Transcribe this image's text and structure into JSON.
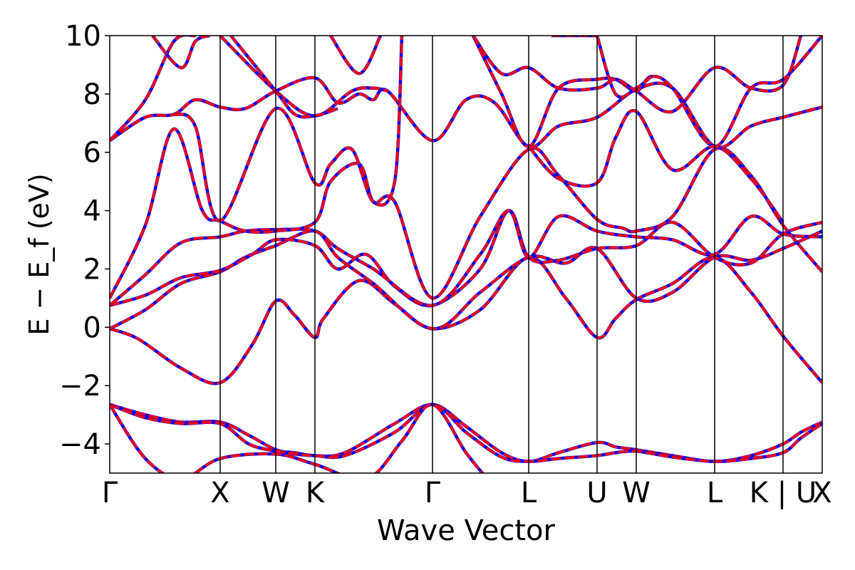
{
  "chart_data": {
    "type": "line",
    "title": "",
    "xlabel": "Wave Vector",
    "ylabel": "E − E_f (eV)",
    "ylim": [
      -5,
      10
    ],
    "y_ticks": [
      -4,
      -2,
      0,
      2,
      4,
      6,
      8,
      10
    ],
    "y_tick_labels": [
      "−4",
      "−2",
      "0",
      "2",
      "4",
      "6",
      "8",
      "10"
    ],
    "x_range": [
      0,
      1
    ],
    "high_symmetry_points": [
      {
        "label": "Γ",
        "x": 0.0
      },
      {
        "label": "X",
        "x": 0.155
      },
      {
        "label": "W",
        "x": 0.233
      },
      {
        "label": "K",
        "x": 0.288
      },
      {
        "label": "Γ",
        "x": 0.453
      },
      {
        "label": "L",
        "x": 0.588
      },
      {
        "label": "U",
        "x": 0.684
      },
      {
        "label": "W",
        "x": 0.739
      },
      {
        "label": "L",
        "x": 0.849
      },
      {
        "label": "K | U",
        "x": 0.945
      },
      {
        "label": "X",
        "x": 1.0
      }
    ],
    "grid": false,
    "series_colors": {
      "overlay": "#ff0000",
      "underlay": "#0000ff"
    },
    "bands": [
      [
        [
          0.0,
          -2.65
        ],
        [
          0.05,
          -3.0
        ],
        [
          0.1,
          -3.25
        ],
        [
          0.155,
          -3.25
        ],
        [
          0.195,
          -3.7
        ],
        [
          0.233,
          -4.2
        ],
        [
          0.26,
          -4.3
        ],
        [
          0.288,
          -4.4
        ],
        [
          0.33,
          -4.3
        ],
        [
          0.4,
          -3.3
        ],
        [
          0.453,
          -2.65
        ],
        [
          0.5,
          -3.4
        ],
        [
          0.55,
          -4.3
        ],
        [
          0.588,
          -4.6
        ],
        [
          0.63,
          -4.3
        ],
        [
          0.684,
          -3.95
        ],
        [
          0.71,
          -4.1
        ],
        [
          0.739,
          -4.2
        ],
        [
          0.79,
          -4.4
        ],
        [
          0.849,
          -4.6
        ],
        [
          0.9,
          -4.4
        ],
        [
          0.945,
          -4.0
        ],
        [
          0.97,
          -3.6
        ],
        [
          1.0,
          -3.25
        ]
      ],
      [
        [
          0.0,
          -2.65
        ],
        [
          0.05,
          -3.1
        ],
        [
          0.1,
          -3.3
        ],
        [
          0.155,
          -3.3
        ],
        [
          0.195,
          -4.0
        ],
        [
          0.233,
          -4.25
        ],
        [
          0.26,
          -4.35
        ],
        [
          0.288,
          -4.4
        ],
        [
          0.33,
          -4.4
        ],
        [
          0.4,
          -3.6
        ],
        [
          0.453,
          -2.65
        ],
        [
          0.5,
          -3.6
        ],
        [
          0.55,
          -4.45
        ],
        [
          0.588,
          -4.6
        ],
        [
          0.63,
          -4.5
        ],
        [
          0.684,
          -4.4
        ],
        [
          0.71,
          -4.3
        ],
        [
          0.739,
          -4.25
        ],
        [
          0.79,
          -4.45
        ],
        [
          0.849,
          -4.6
        ],
        [
          0.9,
          -4.5
        ],
        [
          0.945,
          -4.3
        ],
        [
          0.97,
          -3.8
        ],
        [
          1.0,
          -3.3
        ]
      ],
      [
        [
          0.0,
          -2.65
        ],
        [
          0.05,
          -4.5
        ],
        [
          0.1,
          -5.2
        ],
        [
          0.155,
          -4.5
        ],
        [
          0.233,
          -4.35
        ],
        [
          0.288,
          -4.7
        ],
        [
          0.36,
          -5.2
        ],
        [
          0.41,
          -3.9
        ],
        [
          0.453,
          -2.65
        ],
        [
          0.5,
          -4.3
        ],
        [
          0.53,
          -5.2
        ]
      ],
      [
        [
          0.0,
          -0.05
        ],
        [
          0.04,
          -0.4
        ],
        [
          0.1,
          -1.4
        ],
        [
          0.155,
          -1.9
        ],
        [
          0.2,
          -0.6
        ],
        [
          0.233,
          0.9
        ],
        [
          0.26,
          0.4
        ],
        [
          0.288,
          -0.35
        ],
        [
          0.3,
          0.3
        ],
        [
          0.35,
          1.6
        ],
        [
          0.4,
          0.8
        ],
        [
          0.453,
          -0.05
        ],
        [
          0.52,
          0.6
        ],
        [
          0.588,
          2.4
        ],
        [
          0.64,
          1.0
        ],
        [
          0.684,
          -0.35
        ],
        [
          0.71,
          0.3
        ],
        [
          0.739,
          0.95
        ],
        [
          0.79,
          1.5
        ],
        [
          0.849,
          2.4
        ],
        [
          0.9,
          1.2
        ],
        [
          0.945,
          -0.3
        ],
        [
          1.0,
          -1.9
        ]
      ],
      [
        [
          0.0,
          -0.05
        ],
        [
          0.05,
          0.6
        ],
        [
          0.1,
          1.5
        ],
        [
          0.155,
          1.9
        ],
        [
          0.19,
          2.4
        ],
        [
          0.233,
          2.8
        ],
        [
          0.288,
          3.3
        ],
        [
          0.32,
          2.4
        ],
        [
          0.37,
          1.5
        ],
        [
          0.453,
          -0.05
        ],
        [
          0.52,
          1.2
        ],
        [
          0.588,
          2.4
        ],
        [
          0.64,
          2.2
        ],
        [
          0.684,
          2.7
        ],
        [
          0.739,
          1.0
        ],
        [
          0.79,
          1.2
        ],
        [
          0.849,
          2.4
        ],
        [
          0.9,
          2.3
        ],
        [
          0.945,
          2.7
        ],
        [
          1.0,
          3.3
        ]
      ],
      [
        [
          0.0,
          0.75
        ],
        [
          0.05,
          1.1
        ],
        [
          0.1,
          1.7
        ],
        [
          0.155,
          1.95
        ],
        [
          0.2,
          2.5
        ],
        [
          0.233,
          3.0
        ],
        [
          0.288,
          2.8
        ],
        [
          0.32,
          2.0
        ],
        [
          0.36,
          2.5
        ],
        [
          0.4,
          1.4
        ],
        [
          0.453,
          0.75
        ],
        [
          0.52,
          2.0
        ],
        [
          0.56,
          4.0
        ],
        [
          0.588,
          2.4
        ],
        [
          0.63,
          2.3
        ],
        [
          0.684,
          2.7
        ],
        [
          0.739,
          2.8
        ],
        [
          0.79,
          3.6
        ],
        [
          0.849,
          2.4
        ],
        [
          0.9,
          2.2
        ],
        [
          0.945,
          3.2
        ],
        [
          1.0,
          3.6
        ]
      ],
      [
        [
          0.0,
          0.75
        ],
        [
          0.05,
          1.8
        ],
        [
          0.1,
          2.9
        ],
        [
          0.155,
          3.1
        ],
        [
          0.19,
          3.3
        ],
        [
          0.233,
          3.35
        ],
        [
          0.288,
          3.3
        ],
        [
          0.32,
          2.7
        ],
        [
          0.37,
          2.0
        ],
        [
          0.453,
          0.75
        ],
        [
          0.52,
          2.5
        ],
        [
          0.56,
          4.0
        ],
        [
          0.588,
          2.4
        ],
        [
          0.63,
          3.8
        ],
        [
          0.684,
          3.3
        ],
        [
          0.739,
          3.1
        ],
        [
          0.79,
          3.0
        ],
        [
          0.849,
          2.5
        ],
        [
          0.9,
          3.8
        ],
        [
          0.945,
          3.2
        ],
        [
          1.0,
          3.1
        ]
      ],
      [
        [
          0.0,
          1.0
        ],
        [
          0.05,
          3.5
        ],
        [
          0.09,
          6.8
        ],
        [
          0.13,
          4.0
        ],
        [
          0.155,
          3.65
        ],
        [
          0.19,
          3.3
        ],
        [
          0.233,
          3.3
        ],
        [
          0.288,
          3.6
        ],
        [
          0.31,
          5.0
        ],
        [
          0.35,
          5.6
        ],
        [
          0.37,
          4.3
        ],
        [
          0.4,
          4.3
        ],
        [
          0.453,
          1.0
        ],
        [
          0.52,
          3.8
        ],
        [
          0.588,
          6.1
        ],
        [
          0.63,
          5.2
        ],
        [
          0.684,
          3.7
        ],
        [
          0.72,
          3.4
        ],
        [
          0.739,
          3.3
        ],
        [
          0.79,
          3.8
        ],
        [
          0.849,
          6.1
        ],
        [
          0.9,
          5.2
        ],
        [
          0.945,
          3.5
        ],
        [
          1.0,
          1.9
        ]
      ],
      [
        [
          0.0,
          6.4
        ],
        [
          0.05,
          7.2
        ],
        [
          0.09,
          7.3
        ],
        [
          0.12,
          7.8
        ],
        [
          0.155,
          7.55
        ],
        [
          0.19,
          7.5
        ],
        [
          0.233,
          8.1
        ],
        [
          0.288,
          8.55
        ],
        [
          0.32,
          7.7
        ],
        [
          0.35,
          8.0
        ],
        [
          0.37,
          7.8
        ],
        [
          0.39,
          8.1
        ],
        [
          0.453,
          6.4
        ],
        [
          0.5,
          7.8
        ],
        [
          0.54,
          7.7
        ],
        [
          0.588,
          6.2
        ],
        [
          0.63,
          6.9
        ],
        [
          0.684,
          7.2
        ],
        [
          0.739,
          8.15
        ],
        [
          0.79,
          8.2
        ],
        [
          0.849,
          6.2
        ],
        [
          0.9,
          6.9
        ],
        [
          0.945,
          7.2
        ],
        [
          1.0,
          7.55
        ]
      ],
      [
        [
          0.0,
          6.4
        ],
        [
          0.05,
          7.8
        ],
        [
          0.09,
          9.8
        ],
        [
          0.12,
          10.0
        ]
      ],
      [
        [
          0.06,
          10.0
        ],
        [
          0.1,
          8.9
        ],
        [
          0.12,
          9.8
        ],
        [
          0.14,
          10.0
        ]
      ],
      [
        [
          0.09,
          7.3
        ],
        [
          0.12,
          6.9
        ],
        [
          0.155,
          3.65
        ],
        [
          0.233,
          7.5
        ],
        [
          0.288,
          4.95
        ],
        [
          0.31,
          5.6
        ],
        [
          0.34,
          6.1
        ],
        [
          0.37,
          4.3
        ],
        [
          0.4,
          5.0
        ],
        [
          0.41,
          10.0
        ]
      ],
      [
        [
          0.155,
          10.0
        ],
        [
          0.233,
          8.1
        ],
        [
          0.288,
          7.25
        ],
        [
          0.34,
          8.1
        ],
        [
          0.37,
          8.2
        ],
        [
          0.39,
          8.1
        ]
      ],
      [
        [
          0.17,
          10.0
        ],
        [
          0.233,
          8.1
        ],
        [
          0.26,
          7.3
        ],
        [
          0.288,
          7.25
        ],
        [
          0.32,
          7.5
        ]
      ],
      [
        [
          0.31,
          10.0
        ],
        [
          0.35,
          8.7
        ],
        [
          0.38,
          10.0
        ]
      ],
      [
        [
          0.51,
          10.0
        ],
        [
          0.55,
          8.0
        ],
        [
          0.588,
          6.2
        ],
        [
          0.63,
          8.2
        ],
        [
          0.684,
          8.5
        ],
        [
          0.71,
          8.5
        ],
        [
          0.739,
          8.1
        ],
        [
          0.76,
          8.6
        ],
        [
          0.79,
          8.2
        ],
        [
          0.849,
          6.2
        ],
        [
          0.9,
          8.2
        ],
        [
          0.945,
          8.5
        ],
        [
          1.0,
          10.0
        ]
      ],
      [
        [
          0.51,
          10.0
        ],
        [
          0.55,
          8.7
        ],
        [
          0.588,
          8.9
        ],
        [
          0.63,
          8.2
        ],
        [
          0.684,
          8.2
        ],
        [
          0.71,
          8.5
        ],
        [
          0.739,
          8.1
        ],
        [
          0.79,
          7.4
        ],
        [
          0.849,
          8.9
        ],
        [
          0.9,
          8.2
        ],
        [
          0.945,
          8.3
        ],
        [
          0.97,
          10.0
        ]
      ],
      [
        [
          0.588,
          6.2
        ],
        [
          0.63,
          5.1
        ],
        [
          0.684,
          4.95
        ],
        [
          0.71,
          6.5
        ],
        [
          0.739,
          7.4
        ],
        [
          0.79,
          5.4
        ],
        [
          0.849,
          6.2
        ],
        [
          0.9,
          5.1
        ],
        [
          0.945,
          3.6
        ]
      ],
      [
        [
          0.62,
          10.0
        ],
        [
          0.684,
          10.0
        ]
      ],
      [
        [
          0.684,
          10.0
        ],
        [
          0.71,
          8.0
        ],
        [
          0.739,
          8.2
        ],
        [
          0.76,
          8.6
        ]
      ]
    ]
  }
}
